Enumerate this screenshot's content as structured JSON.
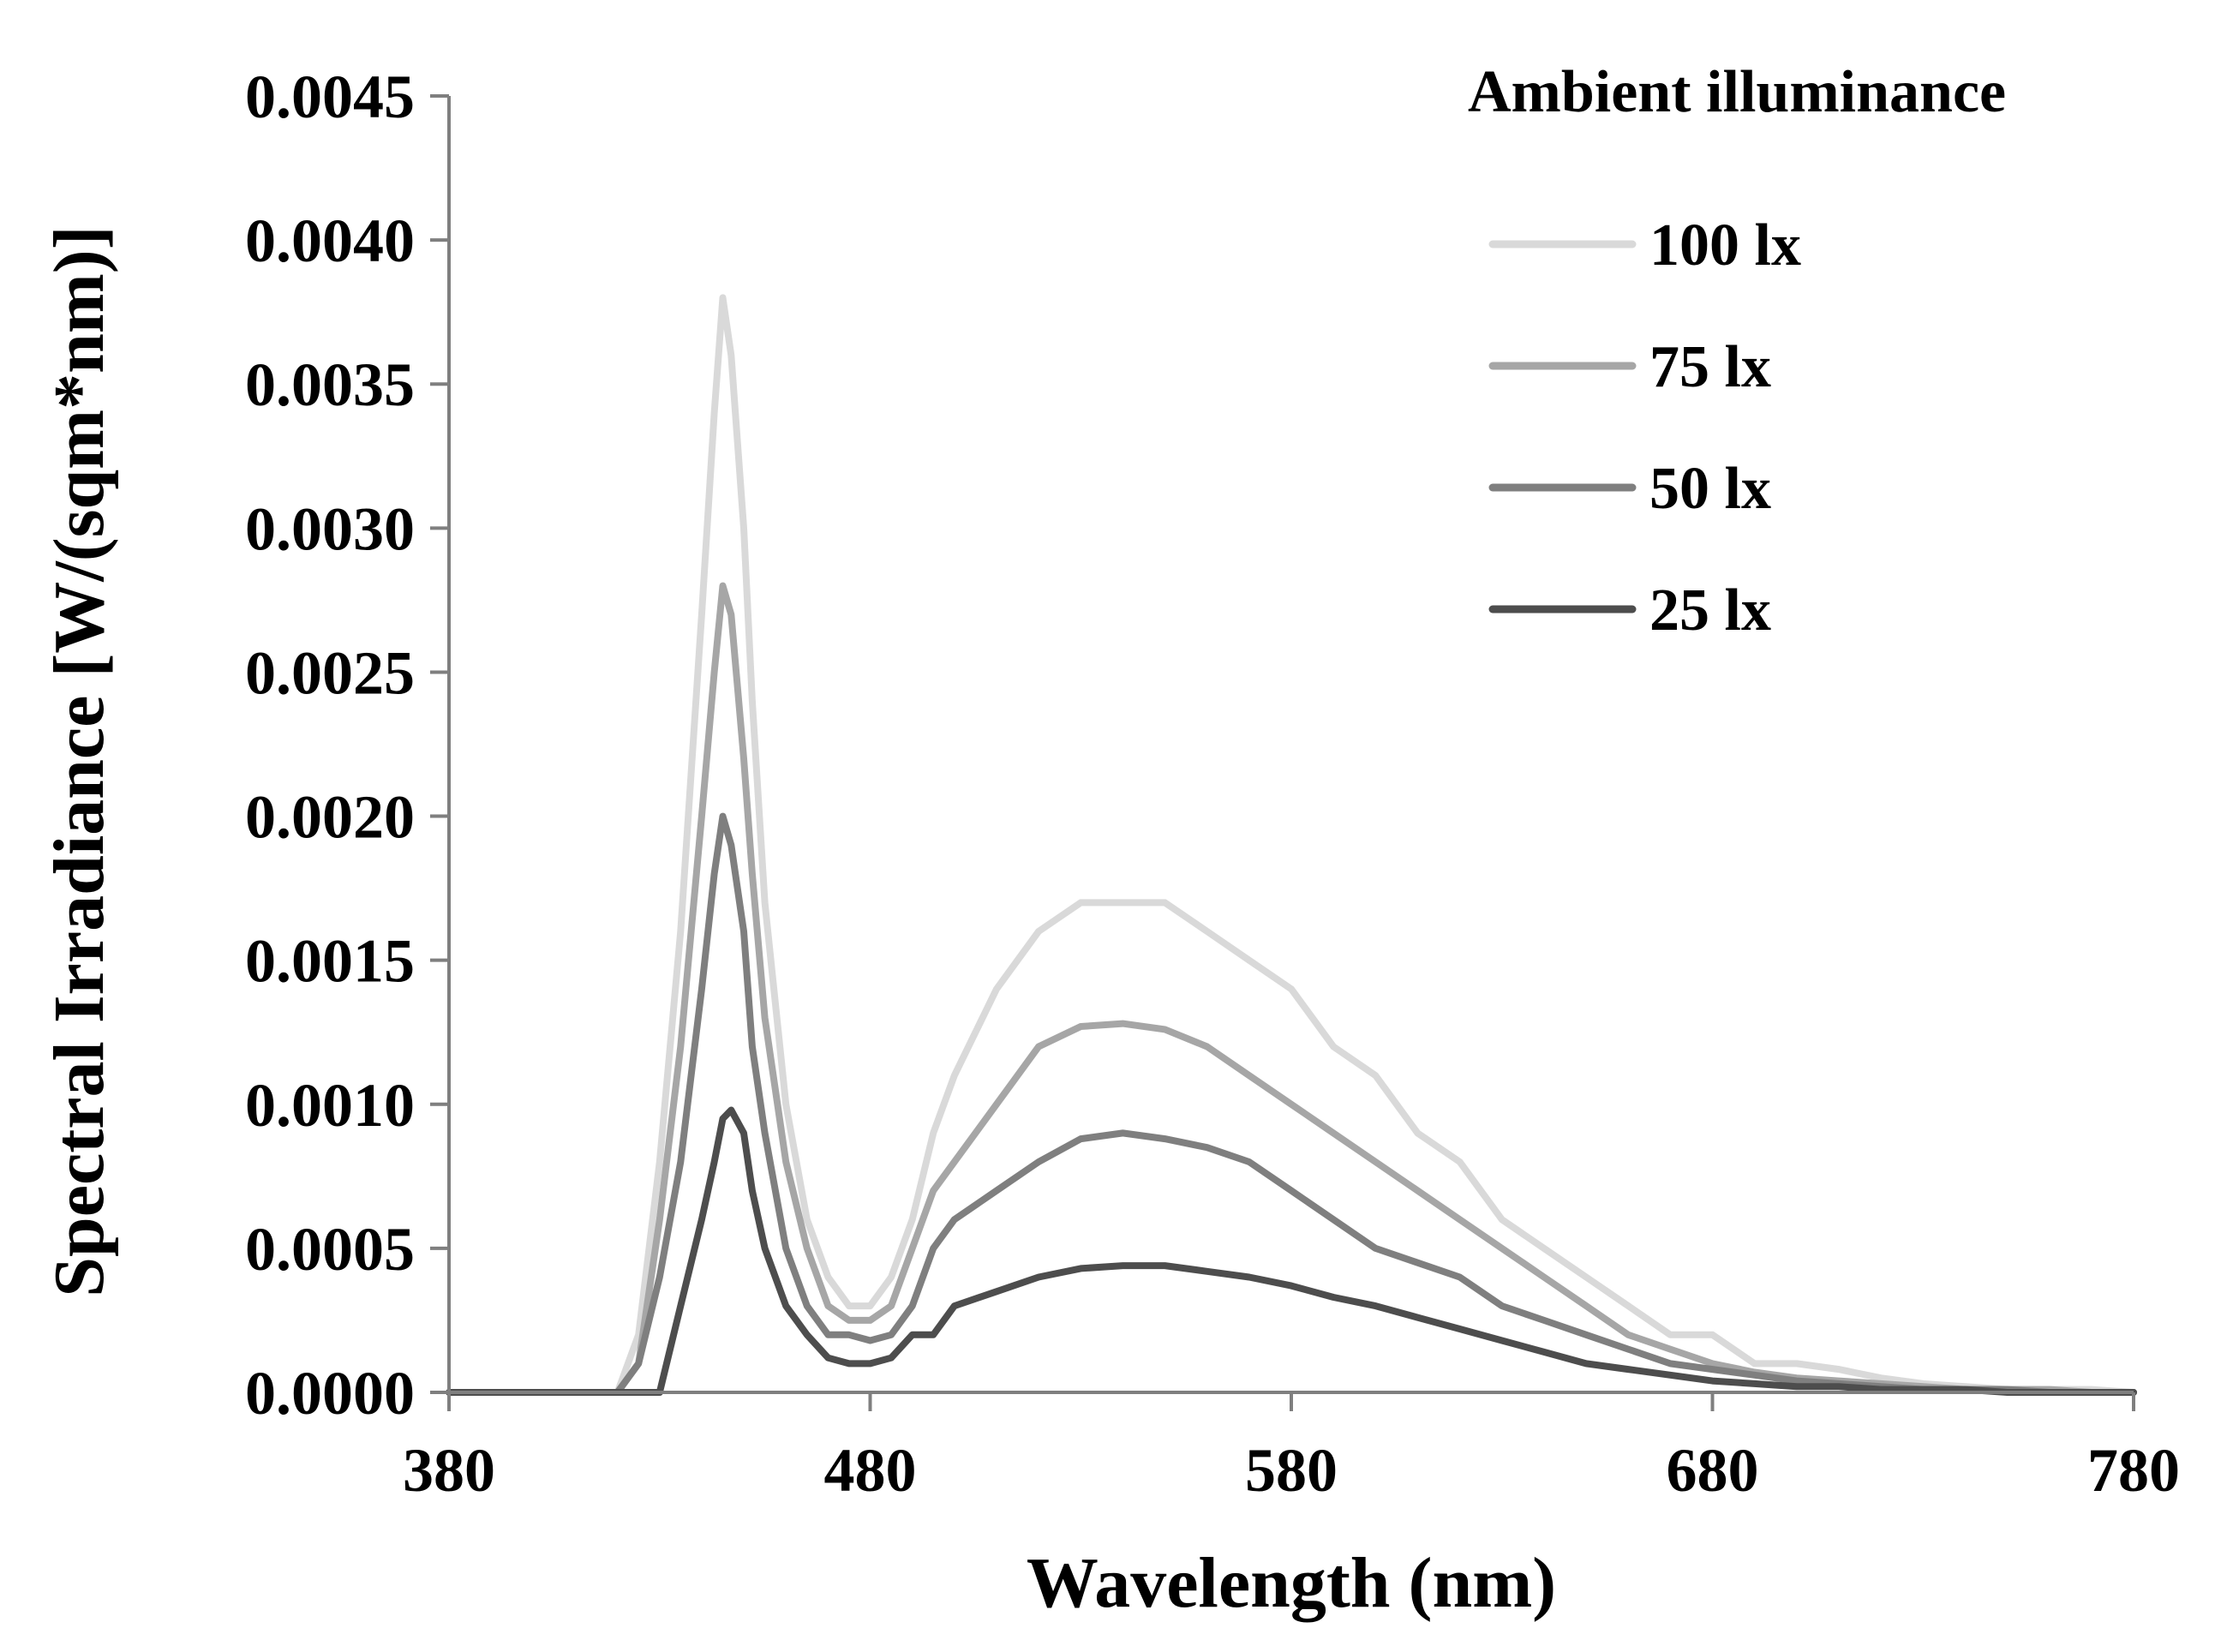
{
  "chart_data": {
    "type": "line",
    "title": "",
    "xlabel": "Wavelength (nm)",
    "ylabel": "Spectral Irradiance [W/(sqm*nm)]",
    "xlim": [
      380,
      780
    ],
    "ylim": [
      0,
      0.0045
    ],
    "x_ticks": [
      "380",
      "480",
      "580",
      "680",
      "780"
    ],
    "y_ticks": [
      "0.0000",
      "0.0005",
      "0.0010",
      "0.0015",
      "0.0020",
      "0.0025",
      "0.0030",
      "0.0035",
      "0.0040",
      "0.0045"
    ],
    "grid": false,
    "legend": {
      "title": "Ambient illuminance",
      "placement": "top-right"
    },
    "x": [
      380,
      390,
      400,
      410,
      420,
      425,
      430,
      435,
      440,
      443,
      445,
      447,
      450,
      452,
      455,
      460,
      465,
      470,
      475,
      480,
      485,
      490,
      495,
      500,
      510,
      520,
      530,
      540,
      550,
      560,
      570,
      580,
      590,
      600,
      610,
      620,
      630,
      640,
      650,
      660,
      670,
      680,
      690,
      700,
      710,
      720,
      730,
      740,
      750,
      760,
      770,
      780
    ],
    "series": [
      {
        "name": "100 lx",
        "color": "#d9d9d9",
        "values": [
          0.0,
          0.0,
          0.0,
          0.0,
          0.0,
          0.0002,
          0.0008,
          0.0016,
          0.0027,
          0.0034,
          0.0038,
          0.0036,
          0.003,
          0.0024,
          0.0017,
          0.001,
          0.0006,
          0.0004,
          0.0003,
          0.0003,
          0.0004,
          0.0006,
          0.0009,
          0.0011,
          0.0014,
          0.0016,
          0.0017,
          0.0017,
          0.0017,
          0.0016,
          0.0015,
          0.0014,
          0.0012,
          0.0011,
          0.0009,
          0.0008,
          0.0006,
          0.0005,
          0.0004,
          0.0003,
          0.0002,
          0.0002,
          0.0001,
          0.0001,
          8e-05,
          5e-05,
          3e-05,
          2e-05,
          1e-05,
          1e-05,
          1e-05,
          0.0
        ]
      },
      {
        "name": "75 lx",
        "color": "#a6a6a6",
        "values": [
          0.0,
          0.0,
          0.0,
          0.0,
          0.0,
          0.0001,
          0.0006,
          0.0012,
          0.002,
          0.0025,
          0.0028,
          0.0027,
          0.0022,
          0.0018,
          0.0013,
          0.0008,
          0.0005,
          0.0003,
          0.00025,
          0.00025,
          0.0003,
          0.0005,
          0.0007,
          0.0008,
          0.001,
          0.0012,
          0.00127,
          0.00128,
          0.00126,
          0.0012,
          0.0011,
          0.001,
          0.0009,
          0.0008,
          0.0007,
          0.0006,
          0.0005,
          0.0004,
          0.0003,
          0.0002,
          0.00015,
          0.0001,
          7e-05,
          5e-05,
          4e-05,
          3e-05,
          2e-05,
          1e-05,
          1e-05,
          1e-05,
          0.0,
          0.0
        ]
      },
      {
        "name": "50 lx",
        "color": "#7f7f7f",
        "values": [
          0.0,
          0.0,
          0.0,
          0.0,
          0.0,
          0.0001,
          0.0004,
          0.0008,
          0.0014,
          0.0018,
          0.002,
          0.0019,
          0.0016,
          0.0012,
          0.0009,
          0.0005,
          0.0003,
          0.0002,
          0.0002,
          0.00018,
          0.0002,
          0.0003,
          0.0005,
          0.0006,
          0.0007,
          0.0008,
          0.00088,
          0.0009,
          0.00088,
          0.00085,
          0.0008,
          0.0007,
          0.0006,
          0.0005,
          0.00045,
          0.0004,
          0.0003,
          0.00025,
          0.0002,
          0.00015,
          0.0001,
          8e-05,
          6e-05,
          4e-05,
          3e-05,
          2e-05,
          1e-05,
          1e-05,
          1e-05,
          0.0,
          0.0,
          0.0
        ]
      },
      {
        "name": "25 lx",
        "color": "#4d4d4d",
        "values": [
          0.0,
          0.0,
          0.0,
          0.0,
          0.0,
          0.0,
          0.0,
          0.0003,
          0.0006,
          0.0008,
          0.00095,
          0.00098,
          0.0009,
          0.0007,
          0.0005,
          0.0003,
          0.0002,
          0.00012,
          0.0001,
          0.0001,
          0.00012,
          0.0002,
          0.0002,
          0.0003,
          0.00035,
          0.0004,
          0.00043,
          0.00044,
          0.00044,
          0.00042,
          0.0004,
          0.00037,
          0.00033,
          0.0003,
          0.00026,
          0.00022,
          0.00018,
          0.00014,
          0.0001,
          8e-05,
          6e-05,
          4e-05,
          3e-05,
          2e-05,
          2e-05,
          1e-05,
          1e-05,
          1e-05,
          0.0,
          0.0,
          0.0,
          0.0
        ]
      }
    ]
  }
}
